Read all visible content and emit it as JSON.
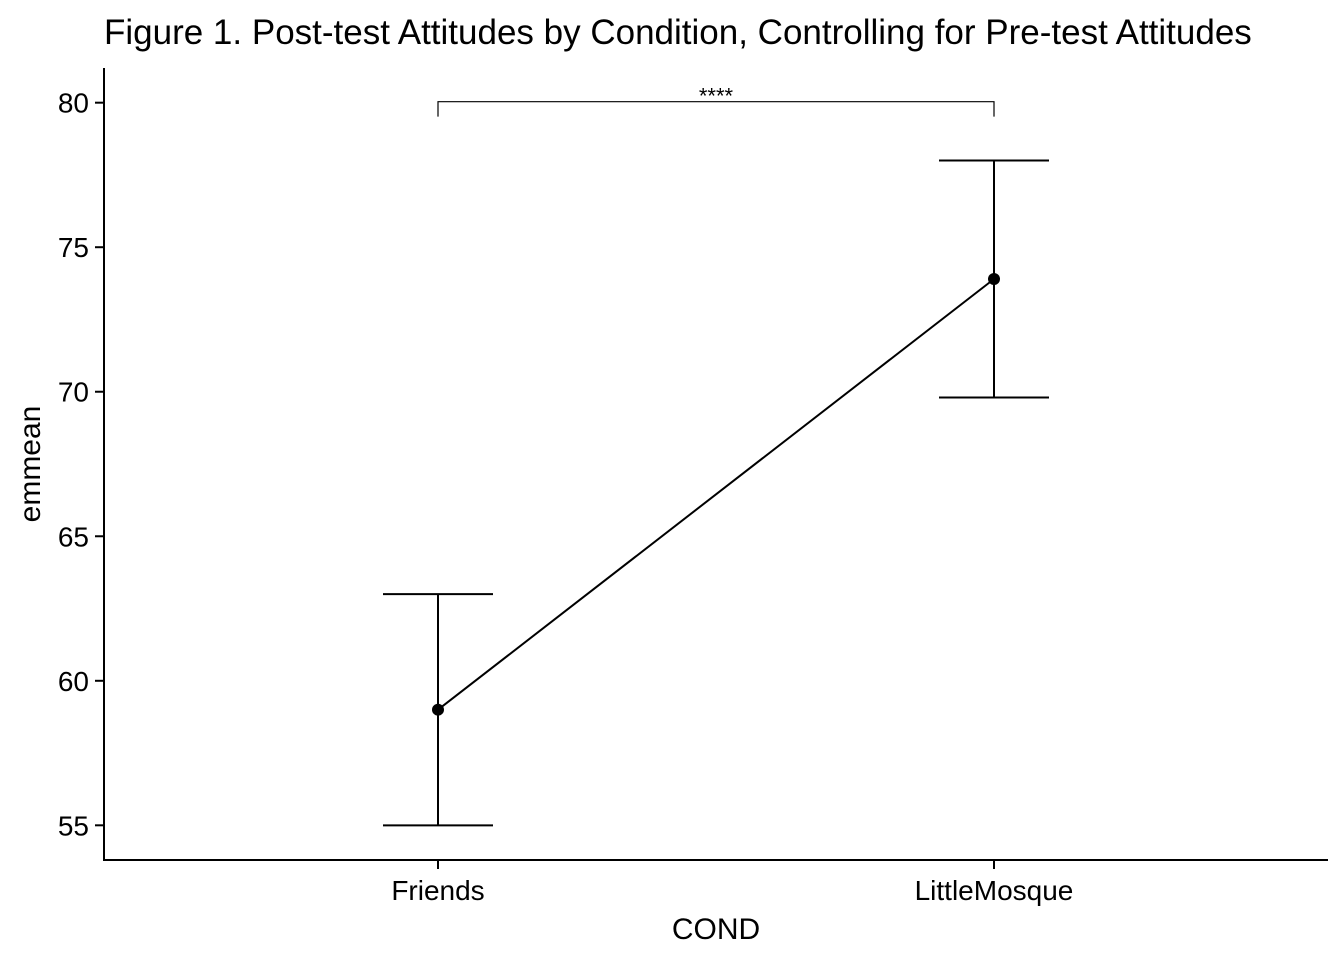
{
  "chart_data": {
    "type": "line",
    "title": "Figure 1. Post-test Attitudes by Condition, Controlling for Pre-test Attitudes",
    "xlabel": "COND",
    "ylabel": "emmean",
    "categories": [
      "Friends",
      "LittleMosque"
    ],
    "series": [
      {
        "values": [
          59.0,
          73.9
        ],
        "lower": [
          55.0,
          69.8
        ],
        "upper": [
          63.0,
          78.0
        ]
      }
    ],
    "yticks": [
      55,
      60,
      65,
      70,
      75,
      80
    ],
    "ylim": [
      53.8,
      81.2
    ],
    "grid": false,
    "legend": "none",
    "significance": {
      "from": "Friends",
      "to": "LittleMosque",
      "label": "****",
      "y": 80.0
    },
    "colors": {
      "line": "#000000",
      "point": "#000000",
      "axis": "#000000"
    }
  }
}
